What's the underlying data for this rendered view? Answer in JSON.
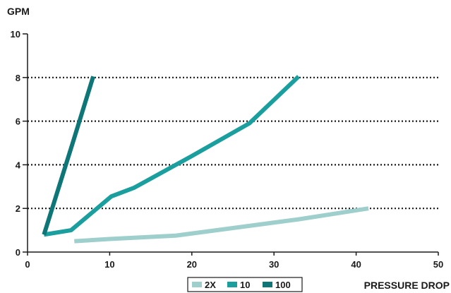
{
  "chart_data": {
    "type": "line",
    "ylabel": "GPM",
    "xlabel": "PRESSURE DROP",
    "xlim": [
      0,
      50
    ],
    "ylim": [
      0,
      10
    ],
    "x_ticks": [
      "0",
      "10",
      "20",
      "30",
      "40",
      "50"
    ],
    "y_ticks": [
      "0",
      "2",
      "4",
      "6",
      "8",
      "10"
    ],
    "grid": "horizontal dotted at 2, 4, 6, 8",
    "legend_position": "bottom",
    "series": [
      {
        "name": "2X",
        "color": "#9fcfcd",
        "points": [
          [
            5.7,
            0.5
          ],
          [
            10,
            0.6
          ],
          [
            18,
            0.75
          ],
          [
            25,
            1.1
          ],
          [
            33,
            1.5
          ],
          [
            41.5,
            2.0
          ]
        ]
      },
      {
        "name": "10",
        "color": "#1a9e9e",
        "points": [
          [
            2,
            0.8
          ],
          [
            5.3,
            1.0
          ],
          [
            10.2,
            2.55
          ],
          [
            13,
            2.95
          ],
          [
            20,
            4.4
          ],
          [
            27,
            5.9
          ],
          [
            33,
            8.05
          ]
        ]
      },
      {
        "name": "100",
        "color": "#0f7678",
        "points": [
          [
            2,
            0.8
          ],
          [
            5.5,
            5.0
          ],
          [
            8,
            8.05
          ]
        ]
      }
    ]
  }
}
